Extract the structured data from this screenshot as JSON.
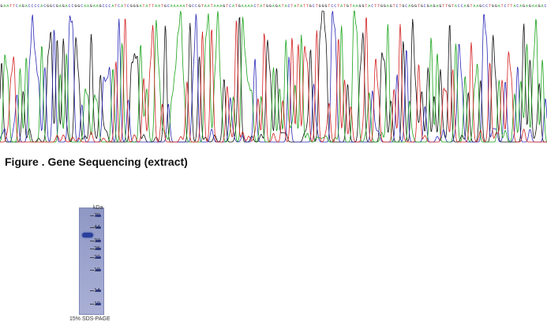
{
  "colors": {
    "A": "#1aa31a",
    "C": "#2a2ab8",
    "G": "#111111",
    "T": "#d42020"
  },
  "sequence": "GAATTCAGACCCCACGGCGAGACCGGCAAGAAGCCCATCATCGGGATATTAATGCAAAAATGCCGTAATAAAGTCATGAAAACTATGGAGATACTATATTGCTGGGTCCTATGTAAGGTACTTGGAGTCTGCAGGTGCGAGAGTTGTACCAGTAAGCCTGGATCTTACAGAGAAGAC",
  "figure": {
    "caption": "Figure . Gene Sequencing (extract)"
  },
  "gel": {
    "unit_label": "kDa",
    "markers": [
      "70",
      "44",
      "33",
      "26",
      "22",
      "18",
      "14",
      "10"
    ],
    "caption": "15% SDS-PAGE"
  }
}
